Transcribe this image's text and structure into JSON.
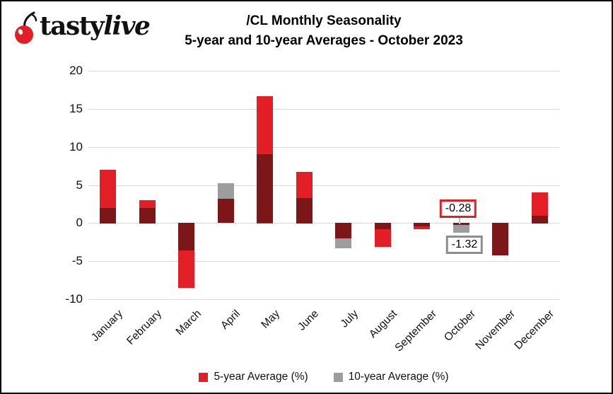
{
  "logo": {
    "brand_regular": "tasty",
    "brand_italic": "live"
  },
  "title": {
    "line1": "/CL Monthly Seasonality",
    "line2": "5-year and 10-year Averages - October 2023"
  },
  "colors": {
    "five_year_red": "#e21e26",
    "ten_year_gray": "#9d9d9d",
    "overlap_maroon": "#7d1619",
    "gridline": "#d9d9d9",
    "annotation_gray_border": "#8d8d8d"
  },
  "chart_data": {
    "type": "bar",
    "categories": [
      "January",
      "February",
      "March",
      "April",
      "May",
      "June",
      "July",
      "August",
      "September",
      "October",
      "November",
      "December"
    ],
    "series": [
      {
        "name": "5-year Average (%)",
        "color": "#e21e26",
        "values": [
          7.0,
          3.0,
          -8.5,
          3.2,
          16.7,
          6.7,
          -2.0,
          -3.2,
          -0.8,
          -0.28,
          -4.3,
          4.0
        ]
      },
      {
        "name": "10-year Average (%)",
        "color": "#9d9d9d",
        "values": [
          2.0,
          2.0,
          -3.6,
          5.2,
          9.0,
          3.3,
          -3.3,
          -0.8,
          -0.5,
          -1.32,
          -4.3,
          1.0
        ]
      }
    ],
    "overlap_color": "#7d1619",
    "title": "/CL Monthly Seasonality 5-year and 10-year Averages - October 2023",
    "xlabel": "",
    "ylabel": "",
    "ylim": [
      -10,
      20
    ],
    "yticks": [
      20,
      15,
      10,
      5,
      0,
      -5,
      -10
    ],
    "grid": true,
    "legend_position": "bottom",
    "annotations": [
      {
        "label": "-0.28",
        "month": "October",
        "series": "5-year Average (%)",
        "border_color": "#e21e26",
        "position": "above"
      },
      {
        "label": "-1.32",
        "month": "October",
        "series": "10-year Average (%)",
        "border_color": "#8d8d8d",
        "position": "below"
      }
    ]
  },
  "legend": [
    {
      "label": "5-year Average (%)",
      "color": "#e21e26"
    },
    {
      "label": "10-year Average (%)",
      "color": "#9d9d9d"
    }
  ]
}
